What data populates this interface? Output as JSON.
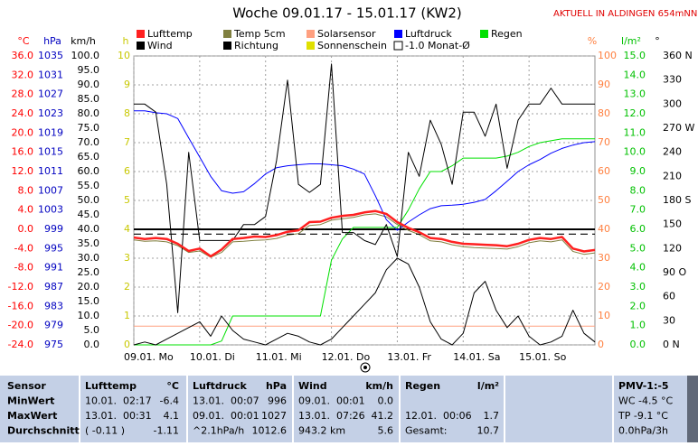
{
  "chart_data": {
    "type": "line",
    "title": "Woche 09.01.17 - 15.01.17 (KW2)",
    "subtitle": "AKTUELL IN ALDINGEN 654mNN",
    "xlim": [
      0,
      168
    ],
    "xticks": [
      {
        "value": 0,
        "label": "09.01. Mo"
      },
      {
        "value": 24,
        "label": "10.01. Di"
      },
      {
        "value": 48,
        "label": "11.01. Mi"
      },
      {
        "value": 72,
        "label": "12.01. Do"
      },
      {
        "value": 96,
        "label": "13.01. Fr"
      },
      {
        "value": 120,
        "label": "14.01. Sa"
      },
      {
        "value": 144,
        "label": "15.01. So"
      }
    ],
    "x": [
      0,
      4,
      8,
      12,
      16,
      20,
      24,
      28,
      32,
      36,
      40,
      44,
      48,
      52,
      56,
      60,
      64,
      68,
      72,
      76,
      80,
      84,
      88,
      92,
      96,
      100,
      104,
      108,
      112,
      116,
      120,
      124,
      128,
      132,
      136,
      140,
      144,
      148,
      152,
      156,
      160,
      164,
      168
    ],
    "axes": [
      {
        "label": "°C",
        "color": "#ff0000",
        "lim": [
          -24,
          36
        ],
        "ticks": [
          {
            "value": 36,
            "label": "36.0"
          },
          {
            "value": 32,
            "label": "32.0"
          },
          {
            "value": 28,
            "label": "28.0"
          },
          {
            "value": 24,
            "label": "24.0"
          },
          {
            "value": 20,
            "label": "20.0"
          },
          {
            "value": 16,
            "label": "16.0"
          },
          {
            "value": 12,
            "label": "12.0"
          },
          {
            "value": 8,
            "label": "8.0"
          },
          {
            "value": 4,
            "label": "4.0"
          },
          {
            "value": 0,
            "label": "0.0"
          },
          {
            "value": -4,
            "label": "-4.0"
          },
          {
            "value": -8,
            "label": "-8.0"
          },
          {
            "value": -12,
            "label": "-12.0"
          },
          {
            "value": -16,
            "label": "-16.0"
          },
          {
            "value": -20,
            "label": "-20.0"
          },
          {
            "value": -24,
            "label": "-24.0"
          }
        ]
      },
      {
        "label": "hPa",
        "color": "#0000c0",
        "lim": [
          975,
          1035
        ],
        "ticks": [
          1035,
          1031,
          1027,
          1023,
          1019,
          1015,
          1011,
          1007,
          1003,
          999,
          995,
          991,
          987,
          983,
          979,
          975
        ]
      },
      {
        "label": "km/h",
        "color": "#000000",
        "lim": [
          0,
          100
        ],
        "ticks": [
          {
            "value": 100,
            "label": "100.0"
          },
          {
            "value": 95,
            "label": "95.0"
          },
          {
            "value": 90,
            "label": "90.0"
          },
          {
            "value": 85,
            "label": "85.0"
          },
          {
            "value": 80,
            "label": "80.0"
          },
          {
            "value": 75,
            "label": "75.0"
          },
          {
            "value": 70,
            "label": "70.0"
          },
          {
            "value": 65,
            "label": "65.0"
          },
          {
            "value": 60,
            "label": "60.0"
          },
          {
            "value": 55,
            "label": "55.0"
          },
          {
            "value": 50,
            "label": "50.0"
          },
          {
            "value": 45,
            "label": "45.0"
          },
          {
            "value": 40,
            "label": "40.0"
          },
          {
            "value": 35,
            "label": "35.0"
          },
          {
            "value": 30,
            "label": "30.0"
          },
          {
            "value": 25,
            "label": "25.0"
          },
          {
            "value": 20,
            "label": "20.0"
          },
          {
            "value": 15,
            "label": "15.0"
          },
          {
            "value": 10,
            "label": "10.0"
          },
          {
            "value": 5,
            "label": "5.0"
          },
          {
            "value": 0,
            "label": "0.0"
          }
        ]
      },
      {
        "label": "h",
        "color": "#c8c800",
        "lim": [
          0,
          10
        ],
        "grid": true,
        "ticks": [
          10,
          9,
          8,
          7,
          6,
          5,
          4,
          3,
          2,
          1,
          0
        ]
      },
      {
        "label": "%",
        "color": "#ff8040",
        "lim": [
          0,
          100
        ],
        "ticks": [
          100,
          90,
          80,
          70,
          60,
          50,
          40,
          30,
          20,
          10,
          0
        ]
      },
      {
        "label": "l/m²",
        "color": "#00c000",
        "lim": [
          0,
          15
        ],
        "ticks": [
          {
            "value": 15,
            "label": "15.0"
          },
          {
            "value": 14,
            "label": "14.0"
          },
          {
            "value": 13,
            "label": "13.0"
          },
          {
            "value": 12,
            "label": "12.0"
          },
          {
            "value": 11,
            "label": "11.0"
          },
          {
            "value": 10,
            "label": "10.0"
          },
          {
            "value": 9,
            "label": "9.0"
          },
          {
            "value": 8,
            "label": "8.0"
          },
          {
            "value": 7,
            "label": "7.0"
          },
          {
            "value": 6,
            "label": "6.0"
          },
          {
            "value": 5,
            "label": "5.0"
          },
          {
            "value": 4,
            "label": "4.0"
          },
          {
            "value": 3,
            "label": "3.0"
          },
          {
            "value": 2,
            "label": "2.0"
          },
          {
            "value": 1,
            "label": "1.0"
          },
          {
            "value": 0,
            "label": "0.0"
          }
        ]
      },
      {
        "label": "°",
        "color": "#000000",
        "lim": [
          0,
          360
        ],
        "ticks": [
          {
            "value": 360,
            "label": "360 N"
          },
          330,
          300,
          {
            "value": 270,
            "label": "270 W"
          },
          240,
          210,
          {
            "value": 180,
            "label": "180 S"
          },
          150,
          120,
          {
            "value": 90,
            "label": "90 O"
          },
          60,
          30,
          {
            "value": 0,
            "label": "0 N"
          }
        ]
      }
    ],
    "series": [
      {
        "name": "Lufttemp",
        "color": "#ff2020",
        "axis": 0,
        "width": 2.5,
        "values": [
          -1.7,
          -2.0,
          -1.8,
          -2.0,
          -3.0,
          -4.5,
          -4.0,
          -5.6,
          -4.2,
          -2.0,
          -1.8,
          -1.5,
          -1.6,
          -1.2,
          -0.5,
          -0.2,
          1.5,
          1.6,
          2.4,
          2.8,
          3.0,
          3.5,
          3.8,
          3.2,
          1.5,
          0.3,
          -0.6,
          -1.8,
          -2.0,
          -2.6,
          -3.0,
          -3.1,
          -3.2,
          -3.3,
          -3.5,
          -3.0,
          -2.2,
          -1.8,
          -2.0,
          -1.6,
          -4.0,
          -4.6,
          -4.3
        ]
      },
      {
        "name": "Temp 5cm",
        "color": "#808040",
        "axis": 0,
        "width": 1,
        "values": [
          -2.2,
          -2.5,
          -2.4,
          -2.6,
          -3.4,
          -4.8,
          -4.5,
          -5.8,
          -4.8,
          -2.6,
          -2.5,
          -2.3,
          -2.2,
          -1.9,
          -1.2,
          -0.9,
          0.8,
          1.0,
          1.9,
          2.2,
          2.5,
          3.0,
          3.2,
          2.6,
          1.0,
          -0.2,
          -1.1,
          -2.4,
          -2.6,
          -3.2,
          -3.6,
          -3.8,
          -3.9,
          -4.0,
          -4.1,
          -3.6,
          -2.8,
          -2.4,
          -2.6,
          -2.2,
          -4.6,
          -5.2,
          -4.9
        ]
      },
      {
        "name": "Solarsensor",
        "color": "#ffa080",
        "axis": 4,
        "width": 1,
        "values": [
          6.5,
          6.5,
          6.5,
          6.5,
          6.5,
          6.5,
          6.5,
          6.5,
          6.5,
          6.5,
          6.5,
          6.5,
          6.5,
          6.5,
          6.5,
          6.5,
          6.5,
          6.5,
          6.5,
          6.5,
          6.5,
          6.5,
          6.5,
          6.5,
          6.5,
          6.5,
          6.5,
          6.5,
          6.5,
          6.5,
          6.5,
          6.5,
          6.5,
          6.5,
          6.5,
          6.5,
          6.5,
          6.5,
          6.5,
          6.5,
          6.5,
          6.5,
          6.5
        ]
      },
      {
        "name": "Luftdruck",
        "color": "#0000ff",
        "axis": 1,
        "width": 1,
        "values": [
          1023.6,
          1023.6,
          1023.2,
          1023.0,
          1022.0,
          1018,
          1014,
          1010,
          1007,
          1006.5,
          1006.8,
          1008.5,
          1010.5,
          1011.8,
          1012.2,
          1012.4,
          1012.6,
          1012.6,
          1012.4,
          1012.2,
          1011.5,
          1010.5,
          1006,
          1001,
          998.8,
          1000.5,
          1002,
          1003.3,
          1003.9,
          1004,
          1004.2,
          1004.6,
          1005.2,
          1007,
          1009,
          1011,
          1012.4,
          1013.5,
          1014.8,
          1015.8,
          1016.5,
          1017,
          1017.2
        ]
      },
      {
        "name": "Regen",
        "color": "#00e000",
        "axis": 5,
        "width": 1,
        "values": [
          0,
          0,
          0,
          0,
          0,
          0,
          0,
          0,
          0.2,
          1.5,
          1.5,
          1.5,
          1.5,
          1.5,
          1.5,
          1.5,
          1.5,
          1.5,
          4.4,
          5.5,
          6.1,
          6.1,
          6.1,
          6.1,
          6.1,
          7.0,
          8.1,
          9.0,
          9.0,
          9.3,
          9.7,
          9.7,
          9.7,
          9.7,
          9.8,
          10.0,
          10.3,
          10.5,
          10.6,
          10.7,
          10.7,
          10.7,
          10.7
        ]
      },
      {
        "name": "Wind",
        "color": "#000000",
        "axis": 2,
        "width": 1,
        "values": [
          0,
          1,
          0,
          2,
          4,
          6,
          8,
          3,
          10,
          5,
          2,
          1,
          0,
          2,
          4,
          3,
          1,
          0,
          2,
          6,
          10,
          14,
          18,
          26,
          30,
          28,
          20,
          8,
          2,
          0,
          4,
          18,
          22,
          12,
          6,
          10,
          3,
          0,
          1,
          3,
          12,
          4,
          1
        ]
      },
      {
        "name": "Richtung",
        "color": "#000000",
        "axis": 6,
        "width": 1,
        "values": [
          300,
          300,
          290,
          200,
          40,
          240,
          130,
          130,
          130,
          130,
          150,
          150,
          160,
          230,
          330,
          200,
          190,
          200,
          350,
          140,
          140,
          130,
          125,
          150,
          110,
          240,
          210,
          280,
          250,
          200,
          290,
          290,
          260,
          300,
          220,
          280,
          300,
          300,
          320,
          300,
          300,
          300,
          300
        ]
      },
      {
        "name": "Sonnenschein",
        "color": "#e0e000",
        "axis": 3
      },
      {
        "name": "-1.0 Monat-Ø",
        "color": "#000000",
        "axis": 0,
        "dashed": true,
        "value": -1.0
      }
    ]
  },
  "table": {
    "rows": [
      [
        "Sensor",
        "Lufttemp",
        "°C",
        "Luftdruck",
        "hPa",
        "Wind",
        "km/h",
        "Regen",
        "l/m²",
        "PMV-1:-5"
      ],
      [
        "MinWert",
        "10.01.  02:17",
        "-6.4",
        "13.01.  00:07",
        "996",
        "09.01.  00:01",
        "0.0",
        null,
        null,
        "WC -4.5 °C"
      ],
      [
        "MaxWert",
        "13.01.  00:31",
        "4.1",
        "09.01.  00:01",
        "1027",
        "13.01.  07:26",
        "41.2",
        "12.01.  00:06",
        "1.7",
        "TP -9.1 °C"
      ],
      [
        "Durchschnitt",
        "( -0.11 )",
        "-1.11",
        "^2.1hPa/h",
        "1012.6",
        "943.2 km",
        "5.6",
        "Gesamt:",
        "10.7",
        "0.0hPa/3h"
      ]
    ]
  }
}
